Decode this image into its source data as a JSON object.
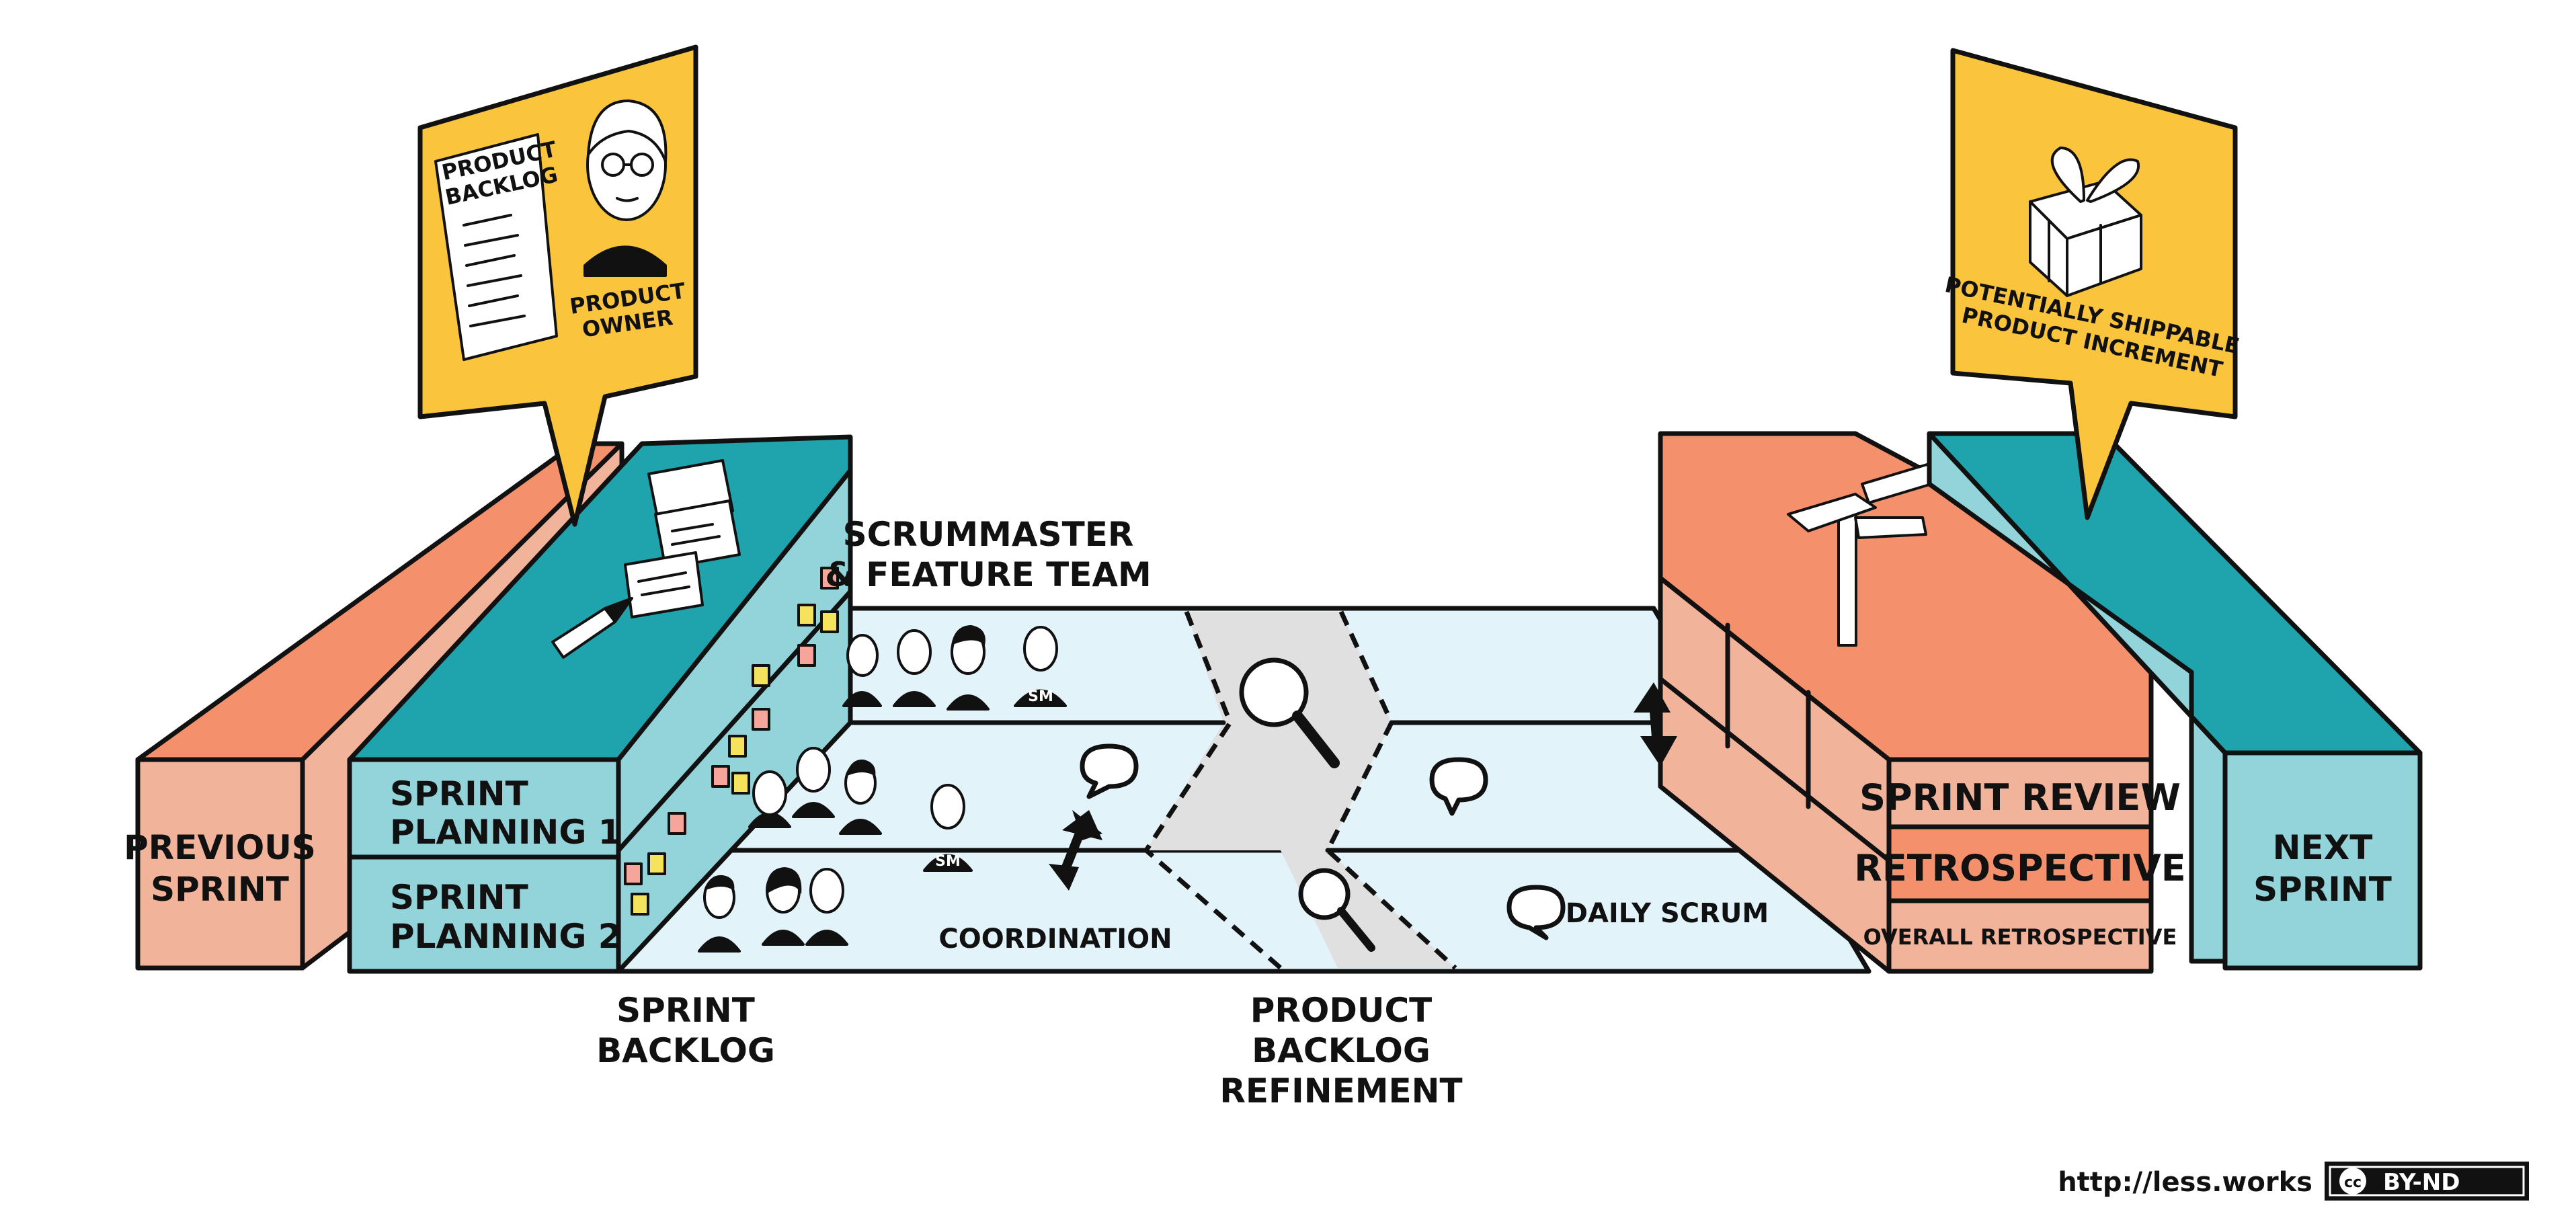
{
  "labels": {
    "previous_sprint": [
      "PREVIOUS",
      "SPRINT"
    ],
    "sprint_planning_1": [
      "SPRINT",
      "PLANNING 1"
    ],
    "sprint_planning_2": [
      "SPRINT",
      "PLANNING 2"
    ],
    "scrummaster_team": [
      "SCRUMMASTER",
      "& FEATURE TEAM"
    ],
    "sprint_backlog": [
      "SPRINT",
      "BACKLOG"
    ],
    "coordination": "COORDINATION",
    "product_backlog_refinement": [
      "PRODUCT",
      "BACKLOG",
      "REFINEMENT"
    ],
    "daily_scrum": "DAILY SCRUM",
    "sprint_review": "SPRINT REVIEW",
    "retrospective": "RETROSPECTIVE",
    "overall_retrospective": "OVERALL RETROSPECTIVE",
    "next_sprint": [
      "NEXT",
      "SPRINT"
    ],
    "sm_badge": "SM"
  },
  "callouts": {
    "product_owner": {
      "backlog_sheet": [
        "PRODUCT",
        "BACKLOG"
      ],
      "role": [
        "PRODUCT",
        "OWNER"
      ]
    },
    "increment": [
      "POTENTIALLY SHIPPABLE",
      "PRODUCT INCREMENT"
    ]
  },
  "footer": {
    "url": "http://less.works",
    "license_cc": "cc",
    "license": "BY-ND"
  },
  "colors": {
    "salmon": "#f4916c",
    "salmon_light": "#f2b39b",
    "teal": "#1fa3ad",
    "teal_light": "#93d3da",
    "floor": "#e3f3fa",
    "refinement_band": "#e0e0e0",
    "callout_yellow": "#fac53c",
    "ink": "#111111",
    "sticky_pink": "#f6a59b",
    "sticky_yellow": "#f5e25d"
  }
}
